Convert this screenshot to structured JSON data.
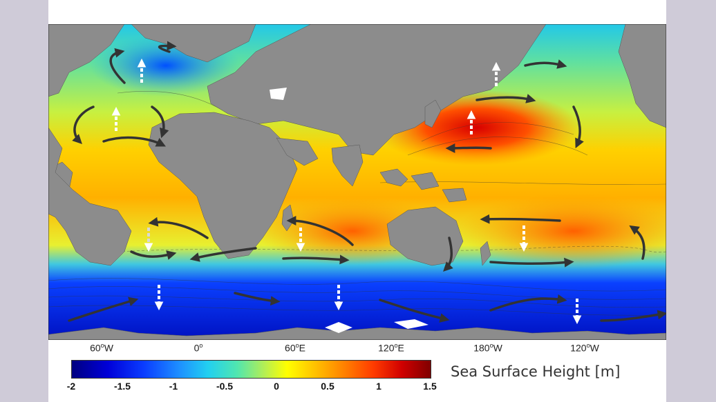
{
  "map": {
    "longitude_labels": [
      "60",
      "0",
      "60",
      "120",
      "180",
      "120"
    ],
    "longitude_suffixes": [
      "W",
      "",
      "E",
      "E",
      "W",
      "W"
    ]
  },
  "colorbar": {
    "title": "Sea Surface Height [m]",
    "ticks": [
      "-2",
      "-1.5",
      "-1",
      "-0.5",
      "0",
      "0.5",
      "1",
      "1.5"
    ],
    "range": [
      -2,
      1.5
    ],
    "colors": [
      "#000080",
      "#0a3cff",
      "#1e90ff",
      "#22d0f0",
      "#b8ef50",
      "#ffff00",
      "#ff8000",
      "#d00000",
      "#800000"
    ]
  },
  "land_color": "#8c8c8c",
  "arrow_colors": {
    "current": "#333333",
    "vertical_flow": "#ffffff"
  }
}
